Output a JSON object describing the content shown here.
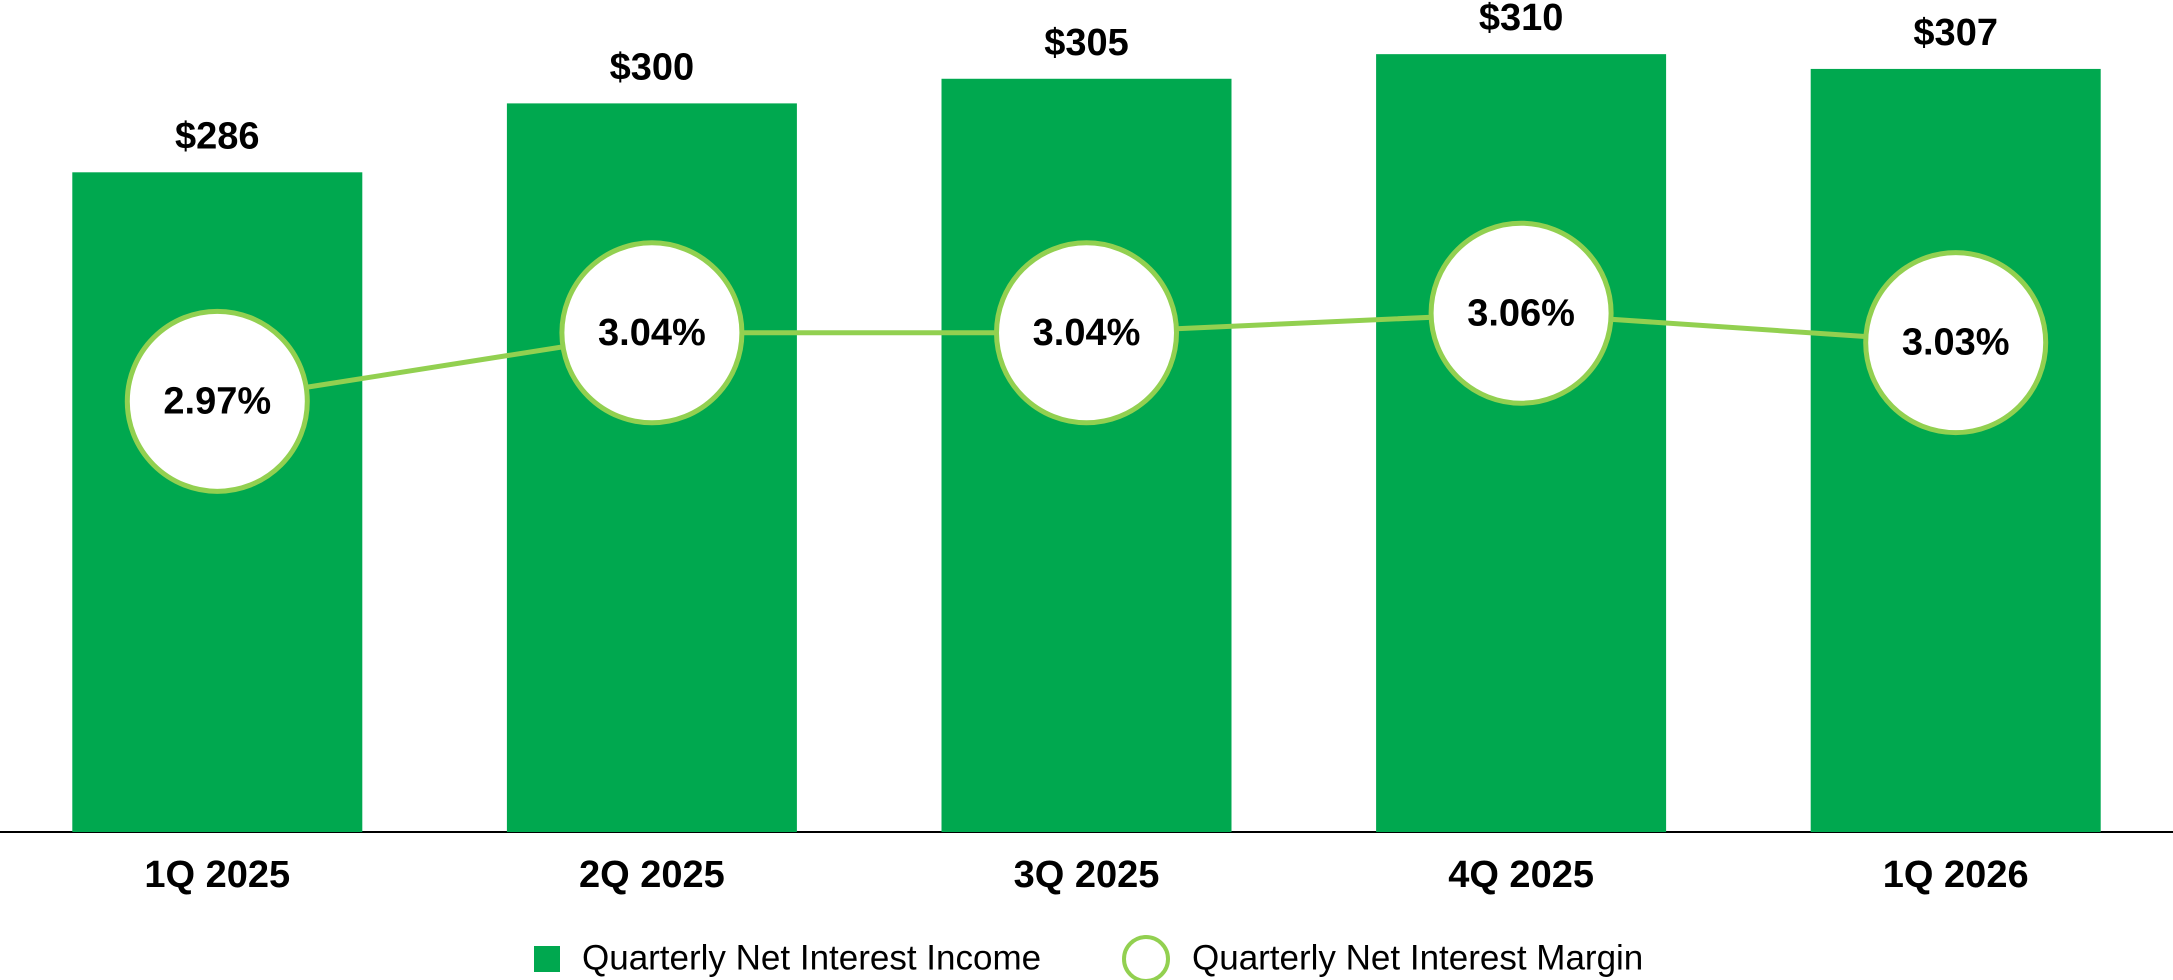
{
  "chart_data": {
    "type": "bar-line",
    "categories": [
      "1Q 2025",
      "2Q 2025",
      "3Q 2025",
      "4Q 2025",
      "1Q 2026"
    ],
    "series": [
      {
        "name": "Quarterly Net Interest Income",
        "type": "bar",
        "color": "#00a84f",
        "values": [
          286,
          300,
          305,
          310,
          307
        ],
        "value_labels": [
          "$286",
          "$300",
          "$305",
          "$310",
          "$307"
        ]
      },
      {
        "name": "Quarterly Net Interest Margin",
        "type": "line",
        "axis": "y2",
        "color": "#92d050",
        "values": [
          2.97,
          3.04,
          3.04,
          3.06,
          3.03
        ],
        "value_labels": [
          "2.97%",
          "3.04%",
          "3.04%",
          "3.06%",
          "3.03%"
        ]
      }
    ],
    "ylim": [
      152,
      321
    ],
    "y2lim": [
      2.53,
      3.38
    ],
    "legend": "bottom"
  }
}
